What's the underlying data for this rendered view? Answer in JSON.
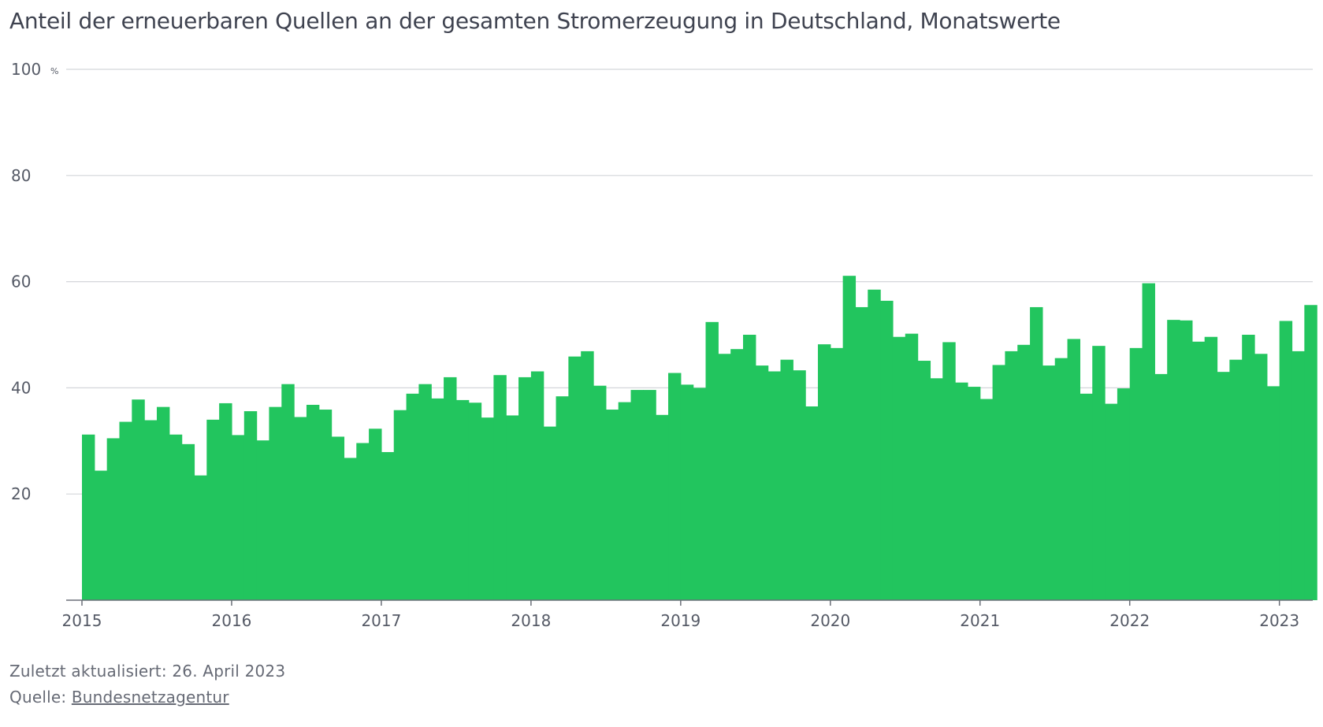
{
  "chart_data": {
    "type": "bar",
    "title": "Anteil der erneuerbaren Quellen an der gesamten Stromerzeugung in Deutschland, Monatswerte",
    "ylabel": "",
    "xlabel": "",
    "y_unit": "%",
    "ylim": [
      0,
      100
    ],
    "y_ticks": [
      20,
      40,
      60,
      80,
      100
    ],
    "y_tick_labels": [
      "20",
      "40",
      "60",
      "80",
      "100"
    ],
    "x_ticks": [
      "2015",
      "2016",
      "2017",
      "2018",
      "2019",
      "2020",
      "2021",
      "2022",
      "2023"
    ],
    "grid": true,
    "color": "#22c55e",
    "start": "2015-01",
    "series": [
      {
        "values": [
          31.2,
          24.4,
          30.5,
          33.6,
          37.8,
          33.9,
          36.4,
          31.2,
          29.4,
          23.5,
          34.0,
          37.1,
          31.1,
          35.6,
          30.1,
          36.4,
          40.7,
          34.5,
          36.8,
          35.9,
          30.8,
          26.8,
          29.6,
          32.3,
          27.9,
          35.8,
          38.9,
          40.7,
          38.0,
          42.0,
          37.7,
          37.2,
          34.4,
          42.4,
          34.8,
          42.0,
          43.1,
          32.7,
          38.4,
          45.9,
          46.9,
          40.4,
          35.9,
          37.3,
          39.6,
          39.6,
          34.9,
          42.8,
          40.6,
          40.0,
          52.4,
          46.4,
          47.3,
          50.0,
          44.2,
          43.1,
          45.3,
          43.3,
          36.5,
          48.2,
          47.5,
          61.1,
          55.2,
          58.5,
          56.4,
          49.6,
          50.2,
          45.1,
          41.8,
          48.6,
          41.0,
          40.2,
          37.9,
          44.3,
          46.9,
          48.1,
          55.2,
          44.2,
          45.6,
          49.2,
          38.9,
          47.9,
          37.0,
          39.9,
          47.5,
          59.7,
          42.6,
          52.8,
          52.7,
          48.7,
          49.6,
          43.0,
          45.3,
          50.0,
          46.4,
          40.3,
          52.6,
          46.9,
          55.6
        ]
      }
    ]
  },
  "footer": {
    "updated": "Zuletzt aktualisiert: 26. April 2023",
    "source_prefix": "Quelle: ",
    "source_link": "Bundesnetzagentur"
  }
}
